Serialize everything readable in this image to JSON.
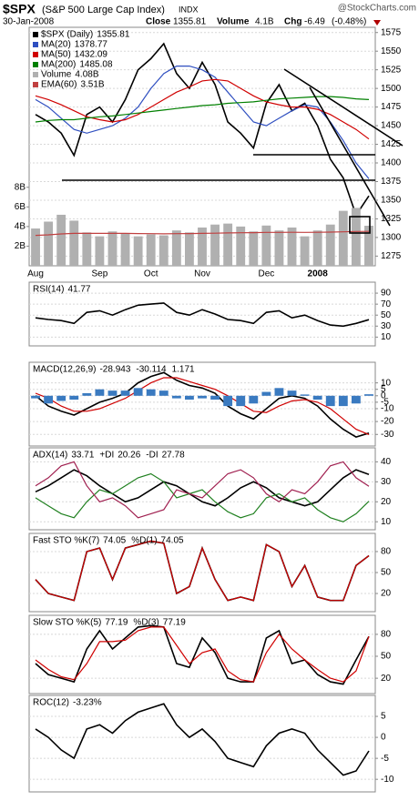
{
  "header": {
    "symbol": "$SPX",
    "name": "(S&P 500 Large Cap Index)",
    "exchange": "INDX",
    "watermark": "@StockCharts.com",
    "date": "30-Jan-2008",
    "close_label": "Close",
    "volume_label": "Volume",
    "volume": "4.1B",
    "change_label": "Chg",
    "change": "-6.49",
    "change_pct": "(-0.48%)"
  },
  "chart_data": [
    {
      "type": "line",
      "categories": [
        "Aug",
        null,
        null,
        null,
        null,
        "Sep",
        null,
        null,
        null,
        "Oct",
        null,
        null,
        null,
        "Nov",
        null,
        null,
        null,
        null,
        "Dec",
        null,
        null,
        null,
        "2008",
        null,
        null,
        null,
        null
      ],
      "ylim": [
        1262,
        1582
      ],
      "yticks": [
        1275,
        1300,
        1325,
        1350,
        1375,
        1400,
        1425,
        1450,
        1475,
        1500,
        1525,
        1550,
        1575
      ],
      "grid": true,
      "y2lim": [
        0,
        24.3
      ],
      "y2ticks": [
        {
          "value": 2,
          "label": "2B"
        },
        {
          "value": 4,
          "label": "4B"
        },
        {
          "value": 6,
          "label": "6B"
        },
        {
          "value": 8,
          "label": "8B"
        }
      ],
      "series": [
        {
          "name": "$SPX (Daily)",
          "color": "#000000",
          "values": [
            1465,
            1455,
            1440,
            1410,
            1465,
            1475,
            1455,
            1485,
            1525,
            1540,
            1560,
            1520,
            1500,
            1535,
            1505,
            1455,
            1440,
            1420,
            1480,
            1505,
            1470,
            1480,
            1450,
            1405,
            1380,
            1330,
            1355.81
          ]
        },
        {
          "name": "MA(20)",
          "color": "#2f4fc0",
          "values": [
            1485,
            1475,
            1460,
            1445,
            1440,
            1445,
            1450,
            1460,
            1475,
            1500,
            1520,
            1530,
            1530,
            1525,
            1515,
            1495,
            1475,
            1455,
            1450,
            1460,
            1470,
            1478,
            1475,
            1455,
            1430,
            1400,
            1378.77
          ]
        },
        {
          "name": "MA(50)",
          "color": "#d00000",
          "values": [
            1490,
            1485,
            1478,
            1470,
            1462,
            1458,
            1455,
            1458,
            1465,
            1475,
            1485,
            1495,
            1502,
            1510,
            1512,
            1510,
            1500,
            1490,
            1482,
            1478,
            1475,
            1475,
            1472,
            1465,
            1455,
            1445,
            1432.09
          ]
        },
        {
          "name": "MA(200)",
          "color": "#008000",
          "values": [
            1455,
            1457,
            1458,
            1458,
            1460,
            1462,
            1463,
            1465,
            1467,
            1469,
            1471,
            1473,
            1475,
            1477,
            1478,
            1480,
            1481,
            1482,
            1484,
            1486,
            1487,
            1488,
            1489,
            1489,
            1488,
            1486,
            1485.08
          ]
        },
        {
          "name": "Volume",
          "type": "bar",
          "axis": "y2",
          "color": "#b0b0b0",
          "values": [
            3.8,
            4.5,
            5.2,
            4.6,
            3.4,
            3.0,
            3.5,
            3.3,
            3.0,
            3.2,
            3.1,
            3.6,
            3.4,
            3.9,
            4.2,
            4.3,
            4.0,
            3.5,
            4.1,
            3.6,
            3.9,
            3.0,
            3.6,
            4.2,
            5.6,
            5.9,
            4.08
          ],
          "value_labels": [
            null,
            null,
            null,
            null,
            null,
            null,
            null,
            null,
            null,
            null,
            null,
            null,
            null,
            null,
            null,
            null,
            null,
            null,
            null,
            null,
            null,
            null,
            null,
            null,
            null,
            null,
            "4.08B"
          ]
        },
        {
          "name": "EMA(60)",
          "axis": "y2",
          "color": "#c04040",
          "values": [
            3.1,
            3.15,
            3.25,
            3.3,
            3.3,
            3.3,
            3.3,
            3.3,
            3.28,
            3.27,
            3.26,
            3.27,
            3.28,
            3.3,
            3.32,
            3.35,
            3.37,
            3.38,
            3.4,
            3.4,
            3.41,
            3.4,
            3.41,
            3.43,
            3.46,
            3.5,
            3.51
          ],
          "value_labels": [
            null,
            null,
            null,
            null,
            null,
            null,
            null,
            null,
            null,
            null,
            null,
            null,
            null,
            null,
            null,
            null,
            null,
            null,
            null,
            null,
            null,
            null,
            null,
            null,
            null,
            null,
            "3.51B"
          ]
        }
      ]
    },
    {
      "type": "line",
      "ylim": [
        -6,
        110
      ],
      "yticks": [
        10,
        30,
        50,
        70,
        90
      ],
      "grid": true,
      "series": [
        {
          "name": "RSI(14)",
          "color": "#000000",
          "values": [
            45,
            42,
            40,
            35,
            55,
            58,
            50,
            60,
            68,
            70,
            72,
            55,
            50,
            60,
            52,
            42,
            40,
            35,
            55,
            58,
            45,
            50,
            40,
            32,
            30,
            35,
            41.77
          ]
        }
      ]
    },
    {
      "type": "line",
      "ylim": [
        -39,
        26
      ],
      "yticks": [
        10,
        5,
        0,
        -5,
        -10,
        -20,
        -30
      ],
      "grid": true,
      "series": [
        {
          "name": "MACD(12,26,9)",
          "color": "#000000",
          "values": [
            0,
            -8,
            -12,
            -15,
            -10,
            -5,
            -2,
            2,
            10,
            15,
            18,
            12,
            8,
            6,
            2,
            -8,
            -14,
            -18,
            -10,
            -2,
            0,
            -2,
            -8,
            -18,
            -26,
            -32,
            -28.943
          ]
        },
        {
          "color": "#d00000",
          "values": [
            2,
            -2,
            -8,
            -12,
            -12,
            -10,
            -6,
            -2,
            4,
            10,
            14,
            14,
            11,
            8,
            5,
            0,
            -6,
            -12,
            -13,
            -8,
            -4,
            -3,
            -5,
            -10,
            -18,
            -26,
            -30.114
          ]
        },
        {
          "type": "bar",
          "color": "#3a7ac0",
          "values": [
            -2,
            -6,
            -4,
            -3,
            2,
            5,
            4,
            4,
            6,
            5,
            4,
            -2,
            -3,
            -2,
            -3,
            -8,
            -8,
            -6,
            3,
            6,
            4,
            1,
            -3,
            -8,
            -8,
            -6,
            1.171
          ]
        }
      ]
    },
    {
      "type": "line",
      "ylim": [
        6,
        47
      ],
      "yticks": [
        10,
        20,
        30,
        40
      ],
      "grid": true,
      "series": [
        {
          "name": "ADX(14)",
          "color": "#000000",
          "values": [
            25,
            28,
            32,
            36,
            33,
            28,
            24,
            20,
            22,
            26,
            30,
            28,
            24,
            20,
            18,
            22,
            27,
            30,
            27,
            22,
            20,
            18,
            20,
            26,
            32,
            36,
            33.71
          ]
        },
        {
          "name": "+DI",
          "color": "#208020",
          "values": [
            22,
            18,
            14,
            12,
            20,
            26,
            24,
            28,
            32,
            34,
            30,
            22,
            24,
            26,
            20,
            15,
            12,
            14,
            22,
            24,
            20,
            22,
            16,
            12,
            10,
            14,
            20.26
          ]
        },
        {
          "name": "-DI",
          "color": "#a02050",
          "values": [
            28,
            32,
            38,
            40,
            28,
            20,
            22,
            18,
            12,
            14,
            16,
            26,
            24,
            22,
            28,
            34,
            36,
            32,
            24,
            20,
            26,
            24,
            30,
            38,
            40,
            32,
            27.78
          ]
        }
      ]
    },
    {
      "type": "line",
      "ylim": [
        -6,
        106
      ],
      "yticks": [
        20,
        50,
        80
      ],
      "grid": true,
      "series": [
        {
          "name": "Fast STO %K(7)",
          "color": "#000000",
          "values": [
            40,
            20,
            15,
            10,
            80,
            85,
            40,
            85,
            90,
            95,
            92,
            20,
            30,
            85,
            40,
            10,
            15,
            10,
            90,
            80,
            30,
            60,
            15,
            10,
            10,
            60,
            74.05
          ]
        },
        {
          "name": "%D(1)",
          "color": "#d00000",
          "values": [
            40,
            20,
            15,
            10,
            80,
            85,
            40,
            85,
            90,
            95,
            92,
            20,
            30,
            85,
            40,
            10,
            15,
            10,
            90,
            80,
            30,
            60,
            15,
            10,
            10,
            60,
            74.05
          ]
        }
      ]
    },
    {
      "type": "line",
      "ylim": [
        -1,
        106
      ],
      "yticks": [
        20,
        50,
        80
      ],
      "grid": true,
      "series": [
        {
          "name": "Slow STO %K(5)",
          "color": "#000000",
          "values": [
            40,
            25,
            20,
            15,
            60,
            85,
            60,
            75,
            90,
            92,
            90,
            40,
            35,
            75,
            55,
            20,
            15,
            15,
            75,
            85,
            40,
            45,
            25,
            15,
            12,
            45,
            77.19
          ]
        },
        {
          "name": "%D(3)",
          "color": "#d00000",
          "values": [
            45,
            32,
            22,
            18,
            40,
            70,
            70,
            72,
            85,
            90,
            90,
            65,
            40,
            55,
            60,
            30,
            18,
            15,
            55,
            80,
            60,
            45,
            32,
            20,
            15,
            30,
            77.19
          ]
        }
      ]
    },
    {
      "type": "line",
      "ylim": [
        -13,
        10
      ],
      "yticks": [
        5,
        0,
        -5,
        -10
      ],
      "grid": true,
      "series": [
        {
          "name": "ROC(12)",
          "color": "#000000",
          "values": [
            2,
            0,
            -3,
            -5,
            2,
            3,
            1,
            4,
            6,
            7,
            8,
            3,
            0,
            2,
            -1,
            -5,
            -6,
            -7,
            -2,
            1,
            2,
            1,
            -3,
            -6,
            -9,
            -8,
            -3.23
          ],
          "value_labels": [
            null,
            null,
            null,
            null,
            null,
            null,
            null,
            null,
            null,
            null,
            null,
            null,
            null,
            null,
            null,
            null,
            null,
            null,
            null,
            null,
            null,
            null,
            null,
            null,
            null,
            null,
            "-3.23%"
          ]
        }
      ]
    }
  ]
}
